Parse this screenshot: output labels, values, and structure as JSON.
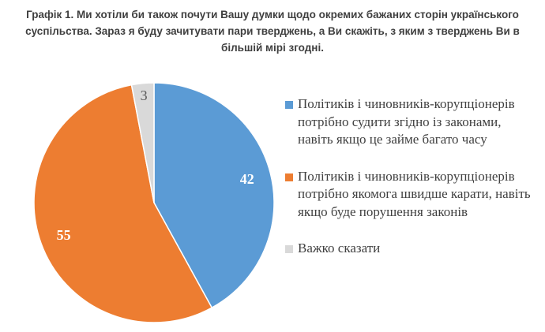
{
  "chart_data": {
    "type": "pie",
    "title": "Графік 1. Ми хотіли би також почути Вашу думки щодо окремих бажаних сторін українського суспільства. Зараз я буду зачитувати пари тверджень, а Ви скажіть, з яким з тверджень Ви в більшій мірі згодні.",
    "categories": [
      "Політиків і чиновників-корупціонерів потрібно судити згідно із законами, навіть якщо це займе багато часу",
      "Політиків і чиновників-корупціонерів потрібно якомога швидше карати, навіть якщо буде порушення законів",
      "Важко сказати"
    ],
    "values": [
      42,
      55,
      3
    ],
    "colors": [
      "#5b9bd5",
      "#ed7d31",
      "#d9d9d9"
    ],
    "data_label_colors": [
      "#ffffff",
      "#ffffff",
      "#595959"
    ],
    "start_angle_deg": 0,
    "direction": "clockwise",
    "legend_position": "right",
    "total": 100
  }
}
